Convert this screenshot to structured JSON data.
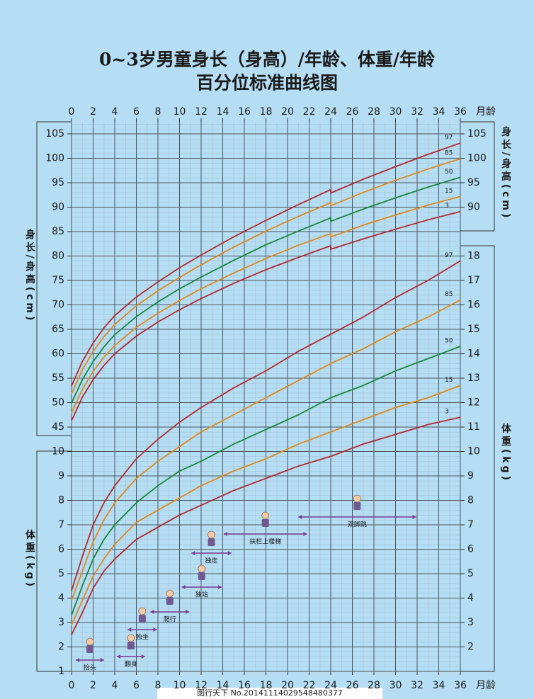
{
  "chart_data": [
    {
      "type": "line",
      "title": "0~3岁男童身长（身高）/年龄、体重/年龄",
      "subtitle": "百分位标准曲线图",
      "x_label": "月龄",
      "y_label": "身长/身高(cm)",
      "xlim": [
        0,
        36
      ],
      "xticks": [
        0,
        2,
        4,
        6,
        8,
        10,
        12,
        14,
        16,
        18,
        20,
        22,
        24,
        26,
        28,
        30,
        32,
        34,
        36
      ],
      "ylim": [
        45,
        105
      ],
      "yticks": [
        45,
        50,
        55,
        60,
        65,
        70,
        75,
        80,
        85,
        90,
        95,
        100,
        105
      ],
      "grid": true,
      "x": [
        0,
        1,
        2,
        3,
        4,
        6,
        8,
        10,
        12,
        15,
        18,
        21,
        24,
        24,
        27,
        30,
        33,
        36
      ],
      "series": [
        {
          "name": "97",
          "color": "#b3282d",
          "values": [
            53.4,
            58.4,
            62.2,
            65.3,
            67.8,
            71.6,
            74.7,
            77.6,
            80.2,
            83.9,
            87.3,
            90.5,
            93.6,
            92.9,
            95.7,
            98.3,
            100.8,
            103.1
          ]
        },
        {
          "name": "85",
          "color": "#e0891c",
          "values": [
            51.8,
            56.7,
            60.5,
            63.5,
            66.0,
            69.8,
            72.9,
            75.6,
            78.2,
            81.8,
            85.1,
            88.1,
            90.9,
            90.3,
            93.0,
            95.5,
            97.8,
            99.9
          ]
        },
        {
          "name": "50",
          "color": "#17873a",
          "values": [
            49.9,
            54.7,
            58.4,
            61.4,
            63.9,
            67.6,
            70.6,
            73.3,
            75.7,
            79.1,
            82.3,
            85.1,
            87.8,
            87.1,
            89.6,
            91.9,
            94.1,
            96.1
          ]
        },
        {
          "name": "15",
          "color": "#e0891c",
          "values": [
            47.9,
            52.7,
            56.4,
            59.3,
            61.7,
            65.4,
            68.3,
            70.9,
            73.3,
            76.5,
            79.5,
            82.2,
            84.6,
            83.9,
            86.3,
            88.4,
            90.4,
            92.2
          ]
        },
        {
          "name": "3",
          "color": "#b3282d",
          "values": [
            46.3,
            51.1,
            54.7,
            57.6,
            60.0,
            63.6,
            66.5,
            69.0,
            71.3,
            74.4,
            77.2,
            79.7,
            82.1,
            81.4,
            83.5,
            85.5,
            87.4,
            89.1
          ]
        }
      ]
    },
    {
      "type": "line",
      "x_label": "月龄",
      "y_label": "体重(kg)",
      "xlim": [
        0,
        36
      ],
      "xticks": [
        0,
        2,
        4,
        6,
        8,
        10,
        12,
        14,
        16,
        18,
        20,
        22,
        24,
        26,
        28,
        30,
        32,
        34,
        36
      ],
      "ylim": [
        1,
        18
      ],
      "yticks": [
        1,
        2,
        3,
        4,
        5,
        6,
        7,
        8,
        9,
        10,
        11,
        12,
        13,
        14,
        15,
        16,
        17,
        18
      ],
      "grid": true,
      "x": [
        0,
        1,
        2,
        3,
        4,
        6,
        8,
        10,
        12,
        15,
        18,
        21,
        24,
        27,
        30,
        33,
        36
      ],
      "series": [
        {
          "name": "97",
          "color": "#b3282d",
          "values": [
            4.3,
            5.7,
            7.0,
            7.9,
            8.6,
            9.7,
            10.5,
            11.2,
            11.8,
            12.6,
            13.3,
            14.1,
            14.8,
            15.5,
            16.3,
            17.0,
            17.8
          ]
        },
        {
          "name": "85",
          "color": "#e0891c",
          "values": [
            3.9,
            5.1,
            6.3,
            7.2,
            7.9,
            8.9,
            9.6,
            10.2,
            10.8,
            11.5,
            12.2,
            12.9,
            13.6,
            14.2,
            14.9,
            15.5,
            16.2
          ]
        },
        {
          "name": "50",
          "color": "#17873a",
          "values": [
            3.3,
            4.5,
            5.6,
            6.4,
            7.0,
            7.9,
            8.6,
            9.2,
            9.6,
            10.3,
            10.9,
            11.5,
            12.2,
            12.7,
            13.3,
            13.8,
            14.3
          ]
        },
        {
          "name": "15",
          "color": "#e0891c",
          "values": [
            2.9,
            3.9,
            4.9,
            5.6,
            6.2,
            7.1,
            7.6,
            8.1,
            8.6,
            9.2,
            9.7,
            10.3,
            10.8,
            11.3,
            11.8,
            12.2,
            12.7
          ]
        },
        {
          "name": "3",
          "color": "#b3282d",
          "values": [
            2.5,
            3.4,
            4.4,
            5.1,
            5.6,
            6.4,
            6.9,
            7.4,
            7.8,
            8.4,
            8.9,
            9.4,
            9.8,
            10.3,
            10.7,
            11.1,
            11.4
          ]
        }
      ],
      "annotations": [
        {
          "text": "抬头",
          "x": [
            0.4,
            3.0
          ]
        },
        {
          "text": "翻身",
          "x": [
            4.2,
            6.8
          ]
        },
        {
          "text": "独坐",
          "x": [
            5.2,
            7.9
          ]
        },
        {
          "text": "爬行",
          "x": [
            7.3,
            10.9
          ]
        },
        {
          "text": "独站",
          "x": [
            10.2,
            13.9
          ]
        },
        {
          "text": "独走",
          "x": [
            11.1,
            14.8
          ]
        },
        {
          "text": "扶栏上楼梯",
          "x": [
            14.1,
            21.8
          ]
        },
        {
          "text": "双脚跳",
          "x": [
            21.0,
            31.9
          ]
        }
      ]
    }
  ],
  "watermark": "图行天下  No.20141114029548480377"
}
